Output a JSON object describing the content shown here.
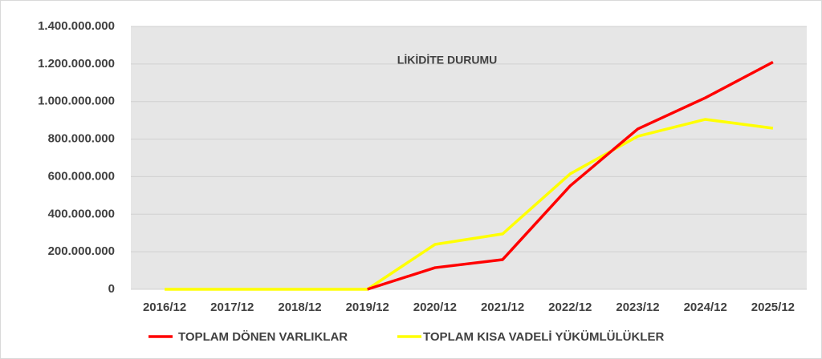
{
  "chart_data": {
    "type": "line",
    "title": "LİKİDİTE DURUMU",
    "categories": [
      "2016/12",
      "2017/12",
      "2018/12",
      "2019/12",
      "2020/12",
      "2021/12",
      "2022/12",
      "2023/12",
      "2024/12",
      "2025/12"
    ],
    "series": [
      {
        "name": "TOPLAM KISA VADELİ YÜKÜMLÜLÜKLER",
        "color": "#ffff00",
        "values": [
          0,
          0,
          0,
          0,
          239000000,
          295000000,
          615000000,
          815000000,
          905000000,
          858000000
        ]
      },
      {
        "name": "TOPLAM DÖNEN VARLIKLAR",
        "color": "#ff0000",
        "values": [
          null,
          null,
          null,
          0,
          115000000,
          158000000,
          551000000,
          854000000,
          1020000000,
          1210000000
        ]
      }
    ],
    "ylim": [
      0,
      1400000000
    ],
    "yticks": [
      0,
      {
        "value": 200000000,
        "label": "200.000.000"
      },
      {
        "value": 400000000,
        "label": "400.000.000"
      },
      {
        "value": 600000000,
        "label": "600.000.000"
      },
      {
        "value": 800000000,
        "label": "800.000.000"
      },
      {
        "value": 1000000000,
        "label": "1.000.000.000"
      },
      {
        "value": 1200000000,
        "label": "1.200.000.000"
      },
      {
        "value": 1400000000,
        "label": "1.400.000.000"
      }
    ],
    "grid": true,
    "legend": "bottom"
  }
}
